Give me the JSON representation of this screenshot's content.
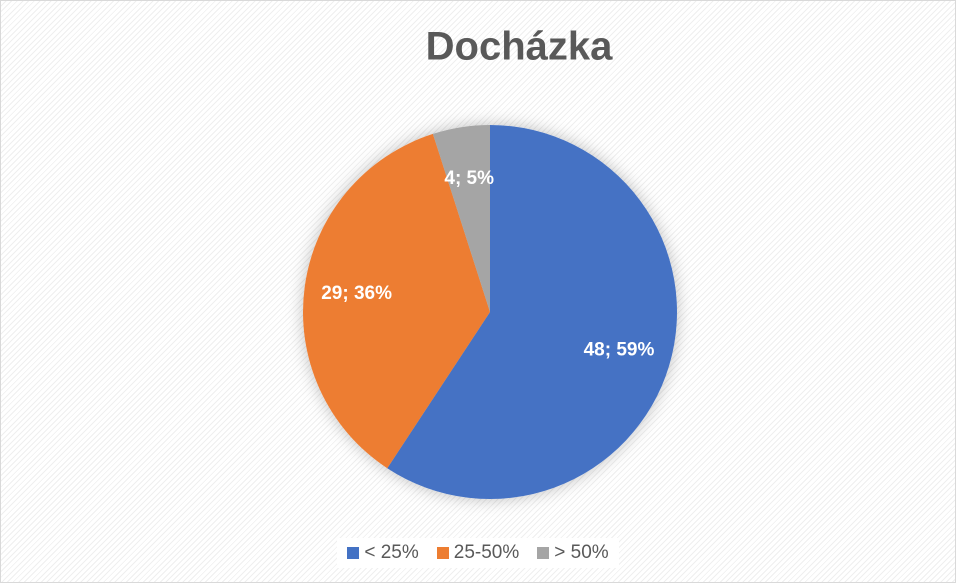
{
  "chart_data": {
    "type": "pie",
    "title": "Docházka",
    "categories": [
      "< 25%",
      "25-50%",
      "> 50%"
    ],
    "values": [
      48,
      29,
      4
    ],
    "value_labels": [
      "48; 59%",
      "29; 36%",
      "4; 5%"
    ],
    "colors": [
      "#4472c4",
      "#ed7d31",
      "#a5a5a5"
    ],
    "legend": "bottom"
  }
}
